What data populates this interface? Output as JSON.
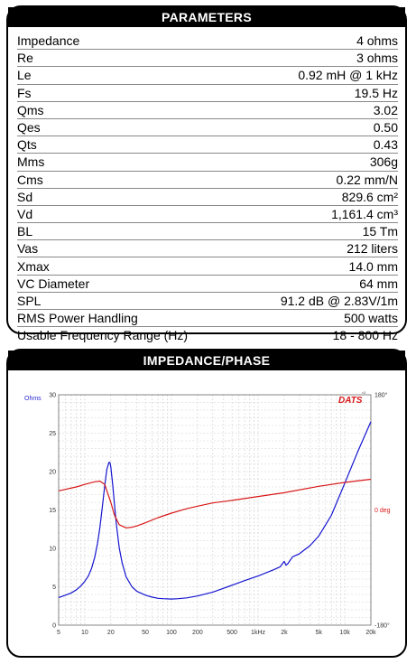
{
  "params_panel": {
    "title": "PARAMETERS",
    "rows": [
      {
        "label": "Impedance",
        "value": "4 ohms"
      },
      {
        "label": "Re",
        "value": "3 ohms"
      },
      {
        "label": "Le",
        "value": "0.92 mH @ 1 kHz"
      },
      {
        "label": "Fs",
        "value": "19.5 Hz"
      },
      {
        "label": "Qms",
        "value": "3.02"
      },
      {
        "label": "Qes",
        "value": "0.50"
      },
      {
        "label": "Qts",
        "value": "0.43"
      },
      {
        "label": "Mms",
        "value": "306g"
      },
      {
        "label": "Cms",
        "value": "0.22 mm/N"
      },
      {
        "label": "Sd",
        "value": "829.6 cm²"
      },
      {
        "label": "Vd",
        "value": "1,161.4 cm³"
      },
      {
        "label": "BL",
        "value": "15 Tm"
      },
      {
        "label": "Vas",
        "value": "212 liters"
      },
      {
        "label": "Xmax",
        "value": "14.0 mm"
      },
      {
        "label": "VC Diameter",
        "value": "64 mm"
      },
      {
        "label": "SPL",
        "value": "91.2 dB @ 2.83V/1m"
      },
      {
        "label": "RMS Power Handling",
        "value": "500 watts"
      },
      {
        "label": "Usable Frequency Range (Hz)",
        "value": "18 - 800 Hz"
      }
    ]
  },
  "chart_panel": {
    "title": "IMPEDANCE/PHASE",
    "logo_text": "DATS",
    "logo_version": "v3"
  },
  "chart_data": {
    "type": "line",
    "title": "IMPEDANCE/PHASE",
    "xscale": "log",
    "xlim": [
      5,
      20000
    ],
    "ylim": [
      0,
      30
    ],
    "y2lim": [
      -180,
      180
    ],
    "grid": true,
    "ylabel": "Ohms",
    "y2label": "deg",
    "x_tick_values": [
      5,
      10,
      20,
      50,
      100,
      200,
      500,
      1000,
      2000,
      5000,
      10000,
      20000
    ],
    "x_tick_labels": [
      "5",
      "10",
      "20",
      "50",
      "100",
      "200",
      "500",
      "1kHz",
      "2k",
      "5k",
      "10k",
      "20k"
    ],
    "y_tick_values": [
      0,
      5,
      10,
      15,
      20,
      25,
      30
    ],
    "y_tick_labels": [
      "0",
      "5",
      "10",
      "15",
      "20",
      "25",
      "30"
    ],
    "y2_tick_labels": [
      "180°",
      "0 deg",
      "-180°"
    ],
    "series": [
      {
        "color": "#1515d0",
        "axis": "left",
        "x": [
          5,
          6,
          7,
          8,
          9,
          10,
          11,
          12,
          13,
          14,
          15,
          16,
          17,
          18,
          19,
          19.5,
          20,
          21,
          22,
          23,
          25,
          27,
          30,
          35,
          40,
          50,
          60,
          70,
          80,
          100,
          120,
          150,
          200,
          300,
          400,
          500,
          700,
          1000,
          1500,
          1800,
          2000,
          2100,
          2200,
          2500,
          3000,
          4000,
          5000,
          7000,
          10000,
          14000,
          20000
        ],
        "y": [
          3.6,
          3.9,
          4.2,
          4.6,
          5.1,
          5.7,
          6.4,
          7.4,
          8.8,
          10.6,
          12.8,
          15.5,
          18.2,
          20.3,
          21.2,
          21.2,
          20.6,
          18.3,
          15.8,
          13.4,
          10.1,
          8.1,
          6.3,
          5.0,
          4.4,
          3.9,
          3.65,
          3.5,
          3.45,
          3.4,
          3.45,
          3.55,
          3.8,
          4.3,
          4.8,
          5.2,
          5.8,
          6.4,
          7.2,
          7.6,
          8.3,
          7.8,
          8.0,
          8.9,
          9.3,
          10.4,
          11.6,
          14.3,
          18.5,
          22.5,
          26.5
        ]
      },
      {
        "color": "#d81818",
        "axis": "right",
        "x": [
          5,
          8,
          10,
          13,
          15,
          17,
          18,
          20,
          22,
          25,
          30,
          35,
          40,
          50,
          70,
          100,
          150,
          200,
          300,
          500,
          1000,
          2000,
          5000,
          10000,
          20000
        ],
        "y": [
          30,
          36,
          40,
          44,
          45,
          40,
          30,
          12,
          -8,
          -23,
          -28,
          -27,
          -25,
          -20,
          -12,
          -5,
          2,
          6,
          11,
          15,
          21,
          27,
          37,
          43,
          48
        ]
      }
    ]
  }
}
